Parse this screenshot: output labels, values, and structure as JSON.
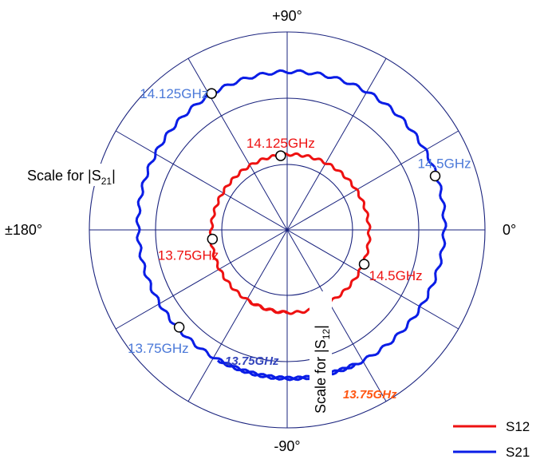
{
  "chart_data": {
    "type": "polar",
    "angle_labels": {
      "top": "+90°",
      "right": "0°",
      "bottom": "-90°",
      "left": "±180°"
    },
    "scale_labels": {
      "s21": {
        "prefix": "Scale for |S",
        "sub": "21",
        "suffix": "|"
      },
      "s12": {
        "prefix": "Scale for |S",
        "sub": "12",
        "suffix": "|"
      }
    },
    "series": [
      {
        "name": "S12",
        "color": "#ee1111",
        "arc": {
          "start_angle_deg": -118,
          "end_angle_deg": 270,
          "radius_fraction": 0.42
        },
        "markers": [
          {
            "label": "13.75GHz",
            "angle_deg": 187
          },
          {
            "label": "14.125GHz",
            "angle_deg": 95
          },
          {
            "label": "14.5GHz",
            "angle_deg": -24
          }
        ]
      },
      {
        "name": "S21",
        "color": "#0a1de6",
        "arc": {
          "start_angle_deg": -118,
          "end_angle_deg": 297,
          "radius_fraction": 0.98
        },
        "markers": [
          {
            "label": "13.75GHz",
            "angle_deg": 222
          },
          {
            "label": "14.125GHz",
            "angle_deg": 119
          },
          {
            "label": "14.5GHz",
            "angle_deg": 20
          }
        ]
      }
    ],
    "annotations": [
      {
        "text": "13.75GHz",
        "color": "#3344bb",
        "style": "bold-italic"
      },
      {
        "text": "13.75GHz",
        "color": "#ff5511",
        "style": "bold-italic"
      }
    ],
    "legend": {
      "placement": "bottom-right",
      "entries": [
        "S12",
        "S21"
      ]
    },
    "grid": true
  }
}
